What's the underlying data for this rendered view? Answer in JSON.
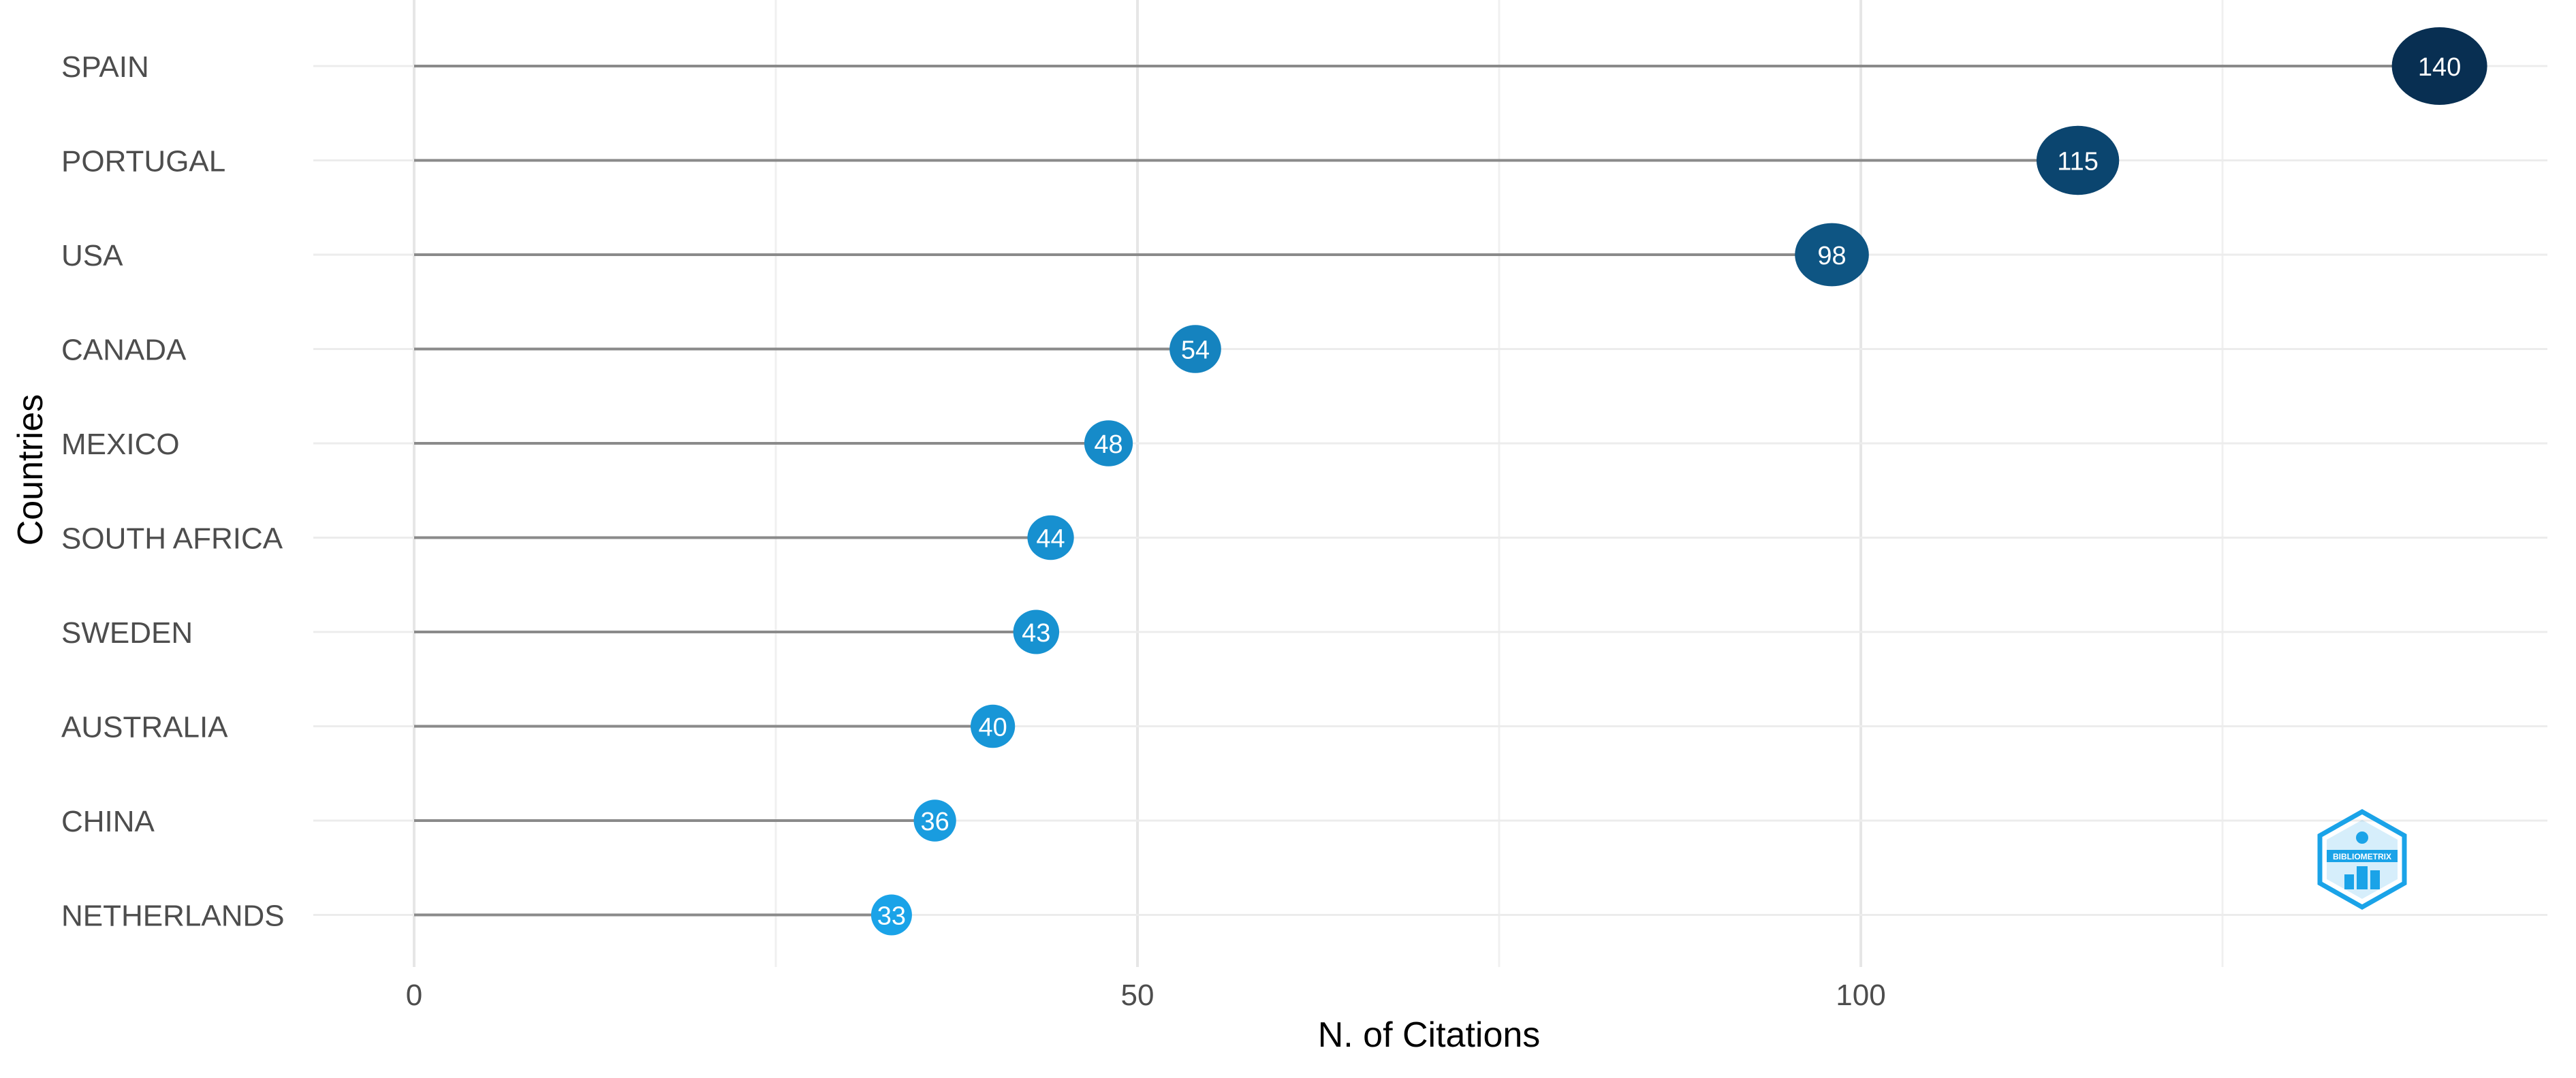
{
  "chart_data": {
    "type": "lollipop",
    "categories": [
      "SPAIN",
      "PORTUGAL",
      "USA",
      "CANADA",
      "MEXICO",
      "SOUTH AFRICA",
      "SWEDEN",
      "AUSTRALIA",
      "CHINA",
      "NETHERLANDS"
    ],
    "values": [
      140,
      115,
      98,
      54,
      48,
      44,
      43,
      40,
      36,
      33
    ],
    "xlabel": "N. of Citations",
    "ylabel": "Countries",
    "x_ticks": [
      0,
      50,
      100
    ],
    "xlim": [
      -7,
      147
    ],
    "grid": true,
    "color_scale": {
      "low": "#1aa3e8",
      "high": "#082f52"
    }
  },
  "logo": {
    "name": "bibliometrix-logo-icon",
    "text": "BIBLIOMETRIX",
    "color": "#1aa3e8"
  }
}
